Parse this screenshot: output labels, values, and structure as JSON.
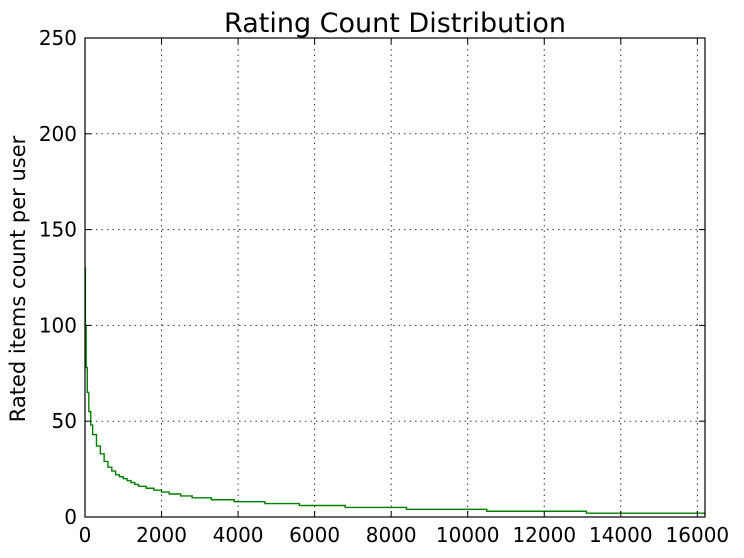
{
  "chart_data": {
    "type": "line",
    "title": "Rating Count Distribution",
    "xlabel": "",
    "ylabel": "Rated items count per user",
    "xlim": [
      0,
      16200
    ],
    "ylim": [
      0,
      250
    ],
    "grid": true,
    "x_ticks": [
      0,
      2000,
      4000,
      6000,
      8000,
      10000,
      12000,
      14000,
      16000
    ],
    "y_ticks": [
      0,
      50,
      100,
      150,
      200,
      250
    ],
    "x_tick_labels": [
      "0",
      "2000",
      "4000",
      "6000",
      "8000",
      "10000",
      "12000",
      "14000",
      "16000"
    ],
    "y_tick_labels": [
      "0",
      "50",
      "100",
      "150",
      "200",
      "250"
    ],
    "series": [
      {
        "color": "#008000",
        "x": [
          0,
          10,
          30,
          60,
          100,
          150,
          200,
          300,
          400,
          500,
          600,
          700,
          800,
          900,
          1000,
          1100,
          1200,
          1300,
          1400,
          1600,
          1800,
          2000,
          2200,
          2500,
          2800,
          3300,
          3900,
          4700,
          5600,
          6800,
          8400,
          10500,
          13100,
          16200
        ],
        "y": [
          130,
          100,
          78,
          65,
          55,
          48,
          43,
          37,
          33,
          29,
          26,
          24,
          22,
          21,
          20,
          19,
          18,
          17,
          16,
          15,
          14,
          13,
          12,
          11,
          10,
          9,
          8,
          7,
          6,
          5,
          4,
          3,
          2,
          1
        ]
      }
    ]
  }
}
